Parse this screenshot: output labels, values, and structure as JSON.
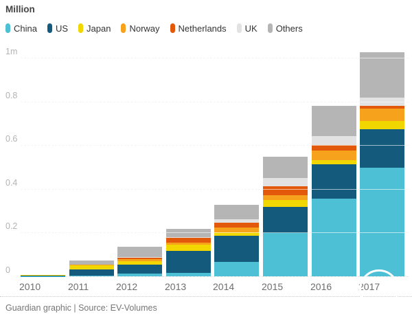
{
  "title": "Million",
  "footer": {
    "text": "Guardian graphic | Source: EV-Volumes"
  },
  "chart_data": {
    "type": "bar",
    "stacked": true,
    "title": "Million",
    "source": "Guardian graphic | Source: EV-Volumes",
    "categories": [
      "2010",
      "2011",
      "2012",
      "2013",
      "2014",
      "2015",
      "2016",
      "2017"
    ],
    "series": [
      {
        "name": "China",
        "color": "#4EC0D5",
        "values": [
          0.001,
          0.004,
          0.013,
          0.016,
          0.065,
          0.197,
          0.354,
          0.496
        ]
      },
      {
        "name": "US",
        "color": "#135A7D",
        "values": [
          0.001,
          0.026,
          0.041,
          0.1,
          0.12,
          0.12,
          0.157,
          0.176
        ]
      },
      {
        "name": "Japan",
        "color": "#F2D600",
        "values": [
          0.003,
          0.02,
          0.016,
          0.03,
          0.016,
          0.031,
          0.019,
          0.038
        ]
      },
      {
        "name": "Norway",
        "color": "#F6A21D",
        "values": [
          0.0,
          0.002,
          0.008,
          0.007,
          0.022,
          0.022,
          0.044,
          0.057
        ]
      },
      {
        "name": "Netherlands",
        "color": "#E2590B",
        "values": [
          0.0,
          0.002,
          0.008,
          0.024,
          0.022,
          0.041,
          0.025,
          0.014
        ]
      },
      {
        "name": "UK",
        "color": "#E2E2E2",
        "values": [
          0.0,
          0.001,
          0.002,
          0.003,
          0.016,
          0.038,
          0.041,
          0.038
        ]
      },
      {
        "name": "Others",
        "color": "#B5B5B5",
        "values": [
          0.002,
          0.016,
          0.046,
          0.036,
          0.066,
          0.098,
          0.139,
          0.206
        ]
      }
    ],
    "ylabel": "Million",
    "ylim": [
      0,
      1
    ],
    "y_ticks": [
      {
        "value": 0.0,
        "label": "0"
      },
      {
        "value": 0.2,
        "label": "0.2"
      },
      {
        "value": 0.4,
        "label": "0.4"
      },
      {
        "value": 0.6,
        "label": "0.6"
      },
      {
        "value": 0.8,
        "label": "0.8"
      },
      {
        "value": 1.0,
        "label": "1m"
      }
    ],
    "grid": true,
    "legend_position": "top"
  }
}
